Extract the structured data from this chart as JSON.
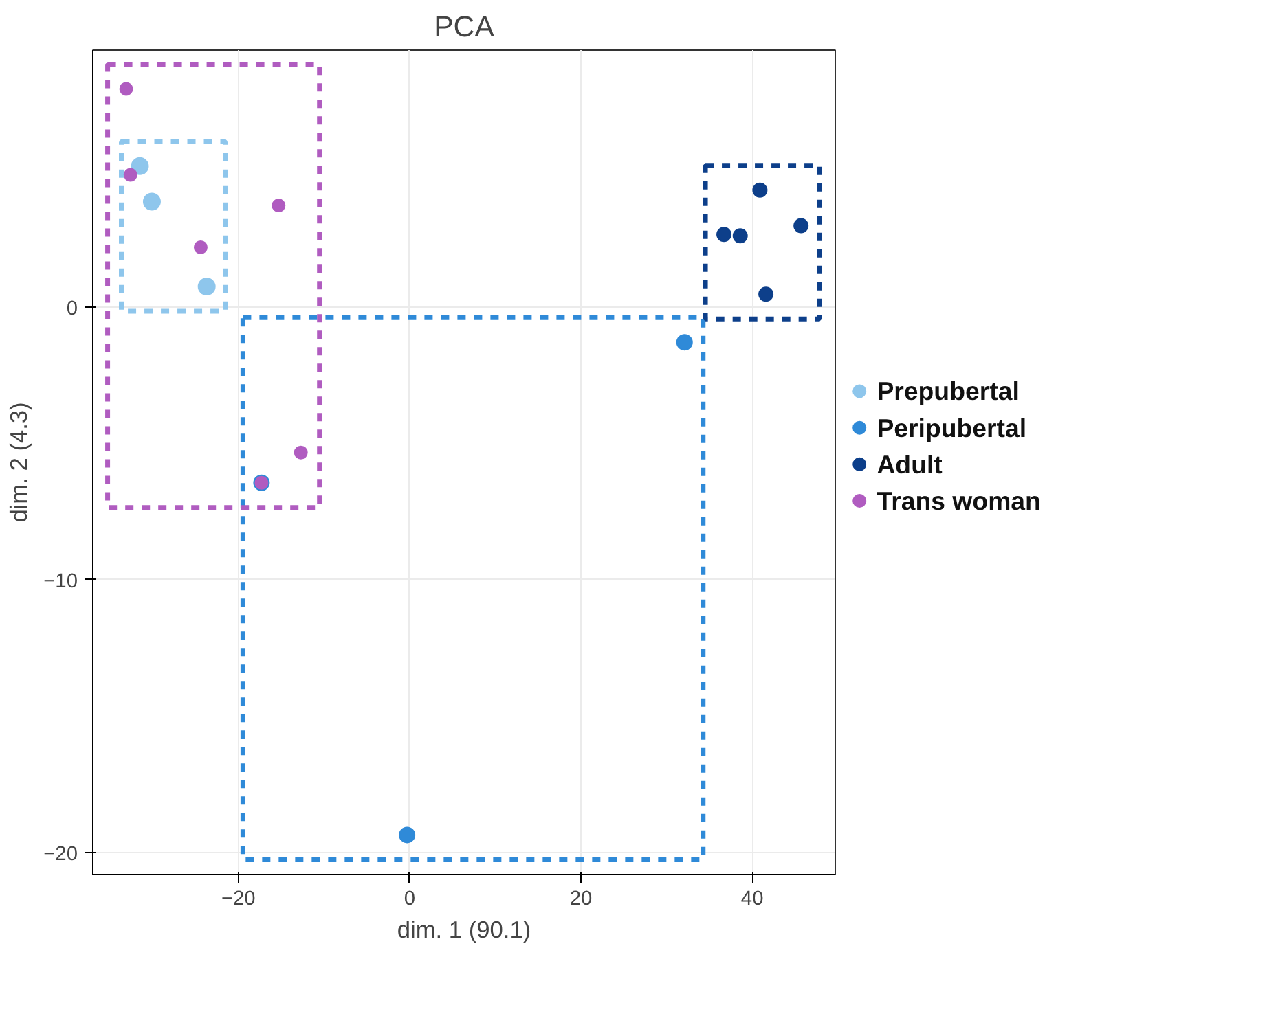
{
  "chart_data": {
    "type": "scatter",
    "title": "PCA",
    "xlabel": "dim. 1 (90.1)",
    "ylabel": "dim. 2 (4.3)",
    "xlim": [
      -37,
      49.7
    ],
    "ylim": [
      -20.8,
      9.4
    ],
    "xticks": [
      -20,
      0,
      20,
      40
    ],
    "yticks": [
      -20,
      -10,
      0
    ],
    "grid": true,
    "legend": "right",
    "marker": "circle",
    "line_style": "dashed",
    "series": [
      {
        "name": "Prepubertal",
        "color": "#8ec6ec",
        "x": [
          -31.5,
          -30.1,
          -23.7
        ],
        "values": [
          5.15,
          3.85,
          0.74
        ]
      },
      {
        "name": "Peripubertal",
        "color": "#2f8ad8",
        "x": [
          32.1,
          -0.3,
          -17.3
        ],
        "values": [
          -1.3,
          -19.35,
          -6.45
        ]
      },
      {
        "name": "Adult",
        "color": "#0d3f8a",
        "x": [
          40.9,
          36.7,
          38.6,
          45.7,
          41.6
        ],
        "values": [
          4.27,
          2.65,
          2.6,
          2.97,
          0.46
        ]
      },
      {
        "name": "Trans woman",
        "color": "#b05cc0",
        "x": [
          -33.1,
          -32.6,
          -24.4,
          -15.3,
          -12.7,
          -17.3
        ],
        "values": [
          7.98,
          4.83,
          2.18,
          3.71,
          -5.34,
          -6.45
        ]
      }
    ]
  }
}
